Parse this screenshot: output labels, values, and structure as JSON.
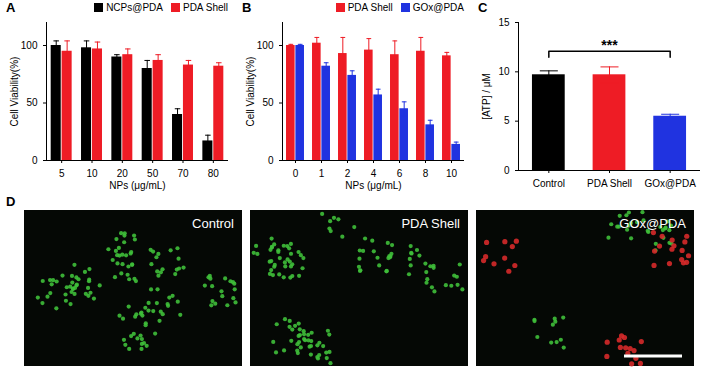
{
  "chart_data": [
    {
      "type": "bar",
      "title": "A",
      "categories": [
        5,
        10,
        20,
        50,
        70,
        80
      ],
      "x_label": "NPs (μg/mL)",
      "y_label": "Cell Viability(%)",
      "ylim": [
        0,
        120
      ],
      "yticks": [
        0,
        50,
        100
      ],
      "legend": "top-right",
      "series": [
        {
          "name": "NCPs@PDA",
          "color": "#000000",
          "values": [
            100,
            98,
            90,
            80,
            40,
            17
          ],
          "errors": [
            4,
            6,
            2,
            7,
            5,
            5
          ]
        },
        {
          "name": "PDA Shell",
          "color": "#ee1c25",
          "values": [
            95,
            97,
            92,
            87,
            83,
            82
          ],
          "errors": [
            9,
            6,
            5,
            5,
            4,
            3
          ]
        }
      ]
    },
    {
      "type": "bar",
      "title": "B",
      "categories": [
        0,
        1,
        2,
        4,
        6,
        8,
        10
      ],
      "x_label": "NPs (μg/mL)",
      "y_label": "Cell Viability(%)",
      "ylim": [
        0,
        120
      ],
      "yticks": [
        0,
        50,
        100
      ],
      "legend": "top-right",
      "series": [
        {
          "name": "PDA Shell",
          "color": "#ee1c25",
          "values": [
            100,
            102,
            93,
            96,
            92,
            95,
            91
          ],
          "errors": [
            1,
            5,
            14,
            10,
            12,
            12,
            3
          ]
        },
        {
          "name": "GOx@PDA",
          "color": "#2033e0",
          "values": [
            100,
            82,
            74,
            57,
            45,
            31,
            14
          ],
          "errors": [
            1,
            3,
            4,
            5,
            6,
            4,
            2
          ]
        }
      ]
    },
    {
      "type": "bar",
      "title": "C",
      "categories": [
        "Control",
        "PDA Shell",
        "GOx@PDA"
      ],
      "y_label": "[ATP] / μM",
      "ylim": [
        0,
        15
      ],
      "yticks": [
        0,
        5,
        10,
        15
      ],
      "values": [
        9.7,
        9.7,
        5.5
      ],
      "errors": [
        0.4,
        0.8,
        0.2
      ],
      "colors": [
        "#000000",
        "#ee1c25",
        "#2033e0"
      ],
      "annotations": [
        {
          "text": "***",
          "from": "Control",
          "to": "GOx@PDA"
        }
      ]
    }
  ],
  "image_panel": {
    "title": "D",
    "images": [
      {
        "label": "Control"
      },
      {
        "label": "PDA Shell"
      },
      {
        "label": "GOx@PDA"
      }
    ]
  }
}
